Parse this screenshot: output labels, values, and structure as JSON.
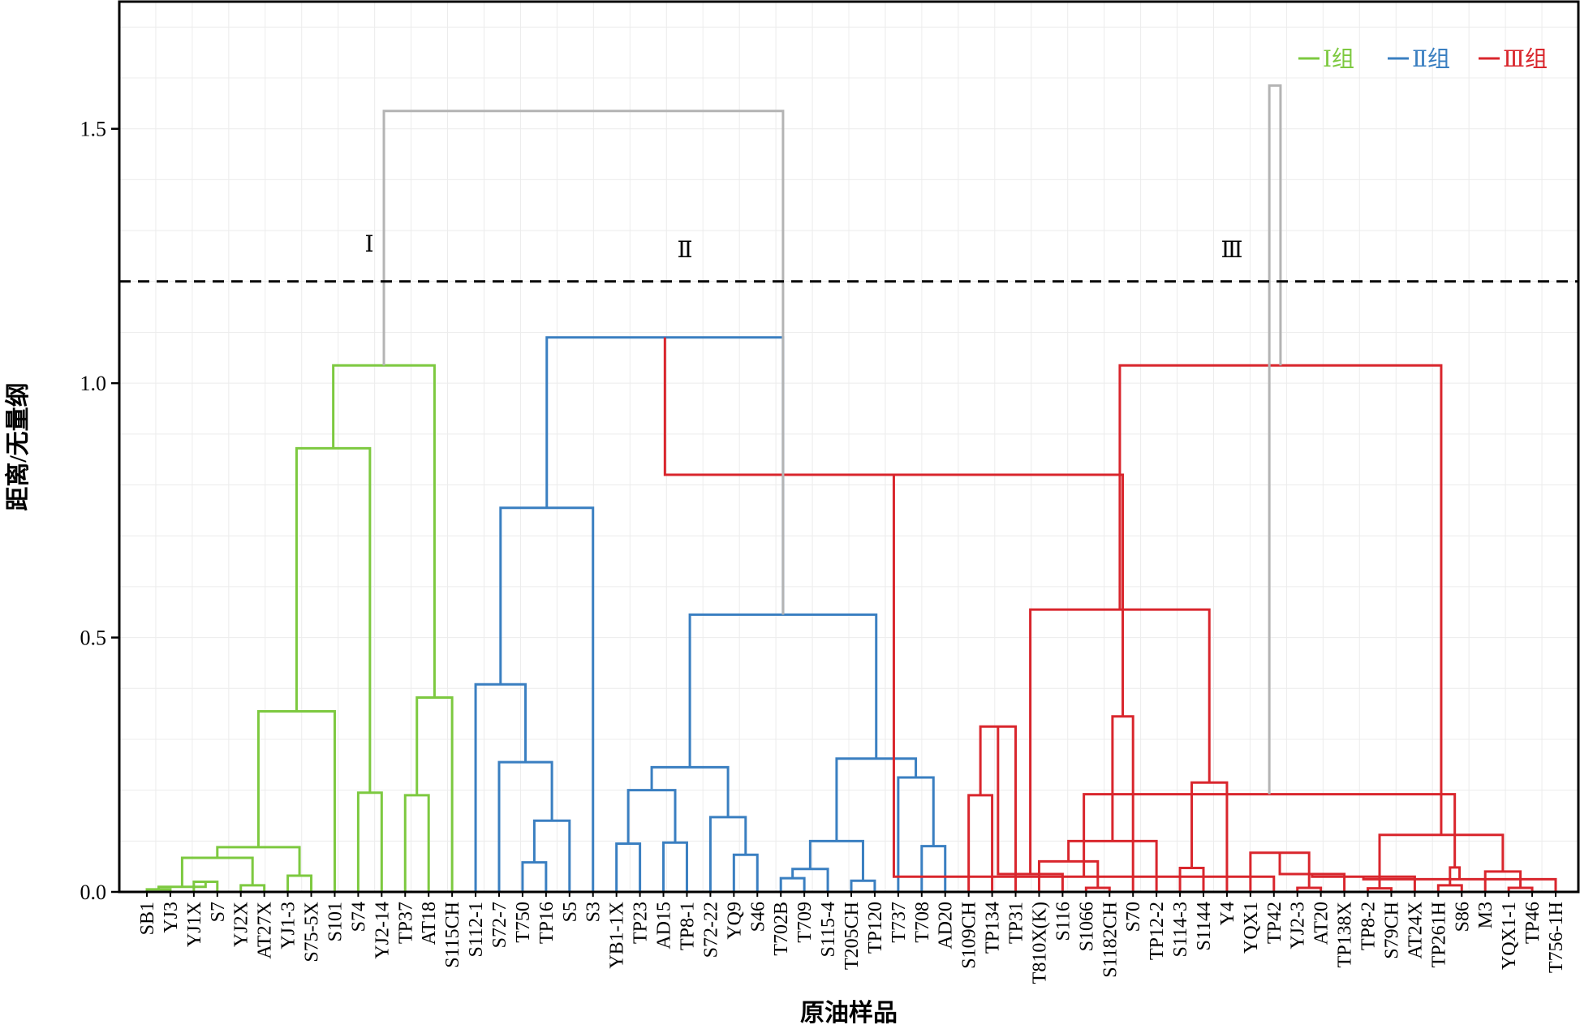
{
  "chart_data": {
    "type": "dendrogram",
    "xlabel": "原油样品",
    "ylabel": "距离/无量纲",
    "ylim": [
      0,
      1.75
    ],
    "yticks": [
      0.0,
      0.5,
      1.0,
      1.5
    ],
    "ytick_labels": [
      "0.0",
      "0.5",
      "1.0",
      "1.5"
    ],
    "grid": true,
    "legend_position": "top-right",
    "cut_height": 1.2,
    "leaves": [
      "SB1",
      "YJ3",
      "YJ1X",
      "S7",
      "YJ2X",
      "AT27X",
      "YJ1-3",
      "S75-5X",
      "S101",
      "S74",
      "YJ2-14",
      "TP37",
      "AT18",
      "S115CH",
      "S112-1",
      "S72-7",
      "T750",
      "TP16",
      "S5",
      "S3",
      "YB1-1X",
      "TP23",
      "AD15",
      "TP8-1",
      "S72-22",
      "YQ9",
      "S46",
      "T702B",
      "T709",
      "S115-4",
      "T205CH",
      "TP120",
      "T737",
      "T708",
      "AD20",
      "S109CH",
      "TP134",
      "TP31",
      "T810X(K)",
      "S116",
      "S1066",
      "S1182CH",
      "S70",
      "TP12-2",
      "S114-3",
      "S1144",
      "Y4",
      "YQX1",
      "TP42",
      "YJ2-3",
      "AT20",
      "TP138X",
      "TP8-2",
      "S79CH",
      "AT24X",
      "TP261H",
      "S86",
      "M3",
      "YQX1-1",
      "TP46",
      "T756-1H"
    ],
    "groups": [
      {
        "name": "Ⅰ组",
        "label": "Ⅰ",
        "color": "#7dc940",
        "leaf_range": [
          0,
          13
        ]
      },
      {
        "name": "Ⅱ组",
        "label": "Ⅱ",
        "color": "#3a7fc1",
        "leaf_range": [
          14,
          34
        ]
      },
      {
        "name": "Ⅲ组",
        "label": "Ⅲ",
        "color": "#d9262d",
        "leaf_range": [
          35,
          60
        ]
      }
    ],
    "link_color_above_cut": "#b4b4b4",
    "merges": [
      [
        0,
        1,
        0.005,
        "g1"
      ],
      [
        2,
        3,
        0.02,
        "g1"
      ],
      [
        -1,
        -2,
        0.01,
        "g1"
      ],
      [
        4,
        5,
        0.013,
        "g1"
      ],
      [
        -3,
        -4,
        0.067,
        "g1"
      ],
      [
        6,
        7,
        0.032,
        "g1"
      ],
      [
        -5,
        -6,
        0.088,
        "g1"
      ],
      [
        -7,
        8,
        0.355,
        "g1"
      ],
      [
        9,
        10,
        0.195,
        "g1"
      ],
      [
        -8,
        -9,
        0.872,
        "g1"
      ],
      [
        11,
        12,
        0.19,
        "g1"
      ],
      [
        -11,
        13,
        0.382,
        "g1"
      ],
      [
        -10,
        -12,
        1.035,
        "g1"
      ],
      [
        16,
        17,
        0.058,
        "g2"
      ],
      [
        -14,
        18,
        0.14,
        "g2"
      ],
      [
        15,
        -15,
        0.255,
        "g2"
      ],
      [
        14,
        -16,
        0.408,
        "g2"
      ],
      [
        -17,
        19,
        0.755,
        "g2"
      ],
      [
        20,
        21,
        0.095,
        "g2"
      ],
      [
        22,
        23,
        0.097,
        "g2"
      ],
      [
        -19,
        -20,
        0.2,
        "g2"
      ],
      [
        25,
        26,
        0.073,
        "g2"
      ],
      [
        24,
        -22,
        0.147,
        "g2"
      ],
      [
        -21,
        -23,
        0.245,
        "g2"
      ],
      [
        27,
        28,
        0.027,
        "g2"
      ],
      [
        -25,
        29,
        0.045,
        "g2"
      ],
      [
        30,
        31,
        0.022,
        "g2"
      ],
      [
        -26,
        -27,
        0.1,
        "g2"
      ],
      [
        33,
        34,
        0.09,
        "g2"
      ],
      [
        32,
        -29,
        0.225,
        "g2"
      ],
      [
        -28,
        -30,
        0.262,
        "g2"
      ],
      [
        -24,
        -31,
        0.545,
        "g2"
      ],
      [
        -18,
        -32,
        1.09,
        "g2"
      ],
      [
        35,
        36,
        0.19,
        "g3"
      ],
      [
        -34,
        37,
        0.325,
        "g3"
      ],
      [
        40,
        41,
        0.008,
        "g3"
      ],
      [
        39,
        -35,
        0.035,
        "g3"
      ],
      [
        38,
        -36,
        0.06,
        "g3"
      ],
      [
        44,
        45,
        0.047,
        "g3"
      ],
      [
        43,
        -38,
        0.1,
        "g3"
      ],
      [
        -39,
        46,
        0.215,
        "g3"
      ],
      [
        42,
        -40,
        0.345,
        "g3"
      ],
      [
        -37,
        -41,
        0.555,
        "g3"
      ],
      [
        -33,
        -42,
        0.82,
        "g3"
      ],
      [
        49,
        50,
        0.008,
        "g3"
      ],
      [
        48,
        -44,
        0.03,
        "g3"
      ],
      [
        47,
        -45,
        0.077,
        "g3"
      ],
      [
        52,
        53,
        0.007,
        "g3"
      ],
      [
        51,
        -47,
        0.035,
        "g3"
      ],
      [
        55,
        56,
        0.013,
        "g3"
      ],
      [
        54,
        -49,
        0.03,
        "g3"
      ],
      [
        58,
        59,
        0.008,
        "g3"
      ],
      [
        -51,
        60,
        0.025,
        "g3"
      ],
      [
        57,
        -52,
        0.04,
        "g3"
      ],
      [
        -50,
        -53,
        0.048,
        "g3"
      ],
      [
        -48,
        -54,
        0.112,
        "g3"
      ],
      [
        -46,
        -55,
        0.192,
        "g3"
      ],
      [
        -43,
        -56,
        1.035,
        "g3"
      ],
      [
        -13,
        -32,
        1.535,
        "top"
      ],
      [
        -57,
        -58,
        1.585,
        "top"
      ]
    ]
  }
}
